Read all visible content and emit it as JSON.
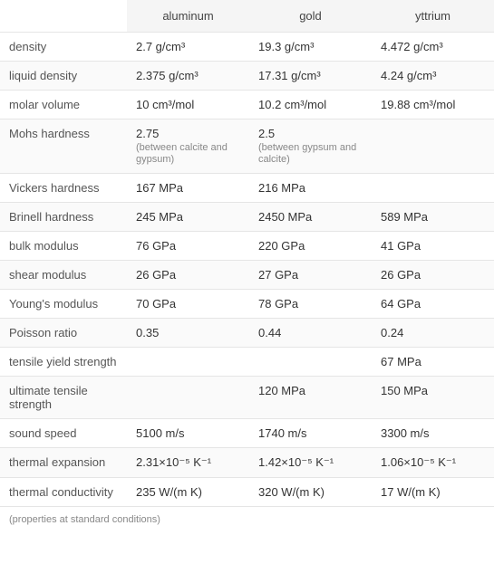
{
  "table": {
    "columns": [
      "",
      "aluminum",
      "gold",
      "yttrium"
    ],
    "rows": [
      {
        "prop": "density",
        "vals": [
          "2.7 g/cm³",
          "19.3 g/cm³",
          "4.472 g/cm³"
        ],
        "subs": [
          "",
          "",
          ""
        ]
      },
      {
        "prop": "liquid density",
        "vals": [
          "2.375 g/cm³",
          "17.31 g/cm³",
          "4.24 g/cm³"
        ],
        "subs": [
          "",
          "",
          ""
        ]
      },
      {
        "prop": "molar volume",
        "vals": [
          "10 cm³/mol",
          "10.2 cm³/mol",
          "19.88 cm³/mol"
        ],
        "subs": [
          "",
          "",
          ""
        ]
      },
      {
        "prop": "Mohs hardness",
        "vals": [
          "2.75",
          "2.5",
          ""
        ],
        "subs": [
          "(between calcite and gypsum)",
          "(between gypsum and calcite)",
          ""
        ]
      },
      {
        "prop": "Vickers hardness",
        "vals": [
          "167 MPa",
          "216 MPa",
          ""
        ],
        "subs": [
          "",
          "",
          ""
        ]
      },
      {
        "prop": "Brinell hardness",
        "vals": [
          "245 MPa",
          "2450 MPa",
          "589 MPa"
        ],
        "subs": [
          "",
          "",
          ""
        ]
      },
      {
        "prop": "bulk modulus",
        "vals": [
          "76 GPa",
          "220 GPa",
          "41 GPa"
        ],
        "subs": [
          "",
          "",
          ""
        ]
      },
      {
        "prop": "shear modulus",
        "vals": [
          "26 GPa",
          "27 GPa",
          "26 GPa"
        ],
        "subs": [
          "",
          "",
          ""
        ]
      },
      {
        "prop": "Young's modulus",
        "vals": [
          "70 GPa",
          "78 GPa",
          "64 GPa"
        ],
        "subs": [
          "",
          "",
          ""
        ]
      },
      {
        "prop": "Poisson ratio",
        "vals": [
          "0.35",
          "0.44",
          "0.24"
        ],
        "subs": [
          "",
          "",
          ""
        ]
      },
      {
        "prop": "tensile yield strength",
        "vals": [
          "",
          "",
          "67 MPa"
        ],
        "subs": [
          "",
          "",
          ""
        ]
      },
      {
        "prop": "ultimate tensile strength",
        "vals": [
          "",
          "120 MPa",
          "150 MPa"
        ],
        "subs": [
          "",
          "",
          ""
        ]
      },
      {
        "prop": "sound speed",
        "vals": [
          "5100 m/s",
          "1740 m/s",
          "3300 m/s"
        ],
        "subs": [
          "",
          "",
          ""
        ]
      },
      {
        "prop": "thermal expansion",
        "vals": [
          "2.31×10⁻⁵ K⁻¹",
          "1.42×10⁻⁵ K⁻¹",
          "1.06×10⁻⁵ K⁻¹"
        ],
        "subs": [
          "",
          "",
          ""
        ]
      },
      {
        "prop": "thermal conductivity",
        "vals": [
          "235 W/(m K)",
          "320 W/(m K)",
          "17 W/(m K)"
        ],
        "subs": [
          "",
          "",
          ""
        ]
      }
    ],
    "footnote": "(properties at standard conditions)",
    "header_bg": "#f5f5f5",
    "border_color": "#e5e5e5",
    "text_color": "#333",
    "sub_color": "#888",
    "font_size": 13,
    "sub_font_size": 11
  }
}
